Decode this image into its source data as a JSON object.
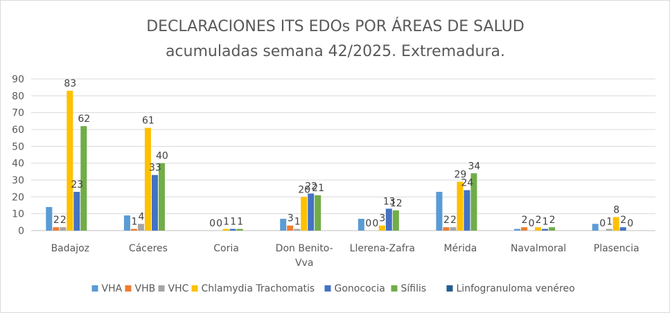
{
  "chart_data": {
    "type": "bar",
    "title": "DECLARACIONES ITS EDOs POR ÁREAS DE SALUD",
    "subtitle": "acumuladas semana 42/2025. Extremadura.",
    "categories": [
      "Badajoz",
      "Cáceres",
      "Coria",
      "Don Benito-Vva",
      "Llerena-Zafra",
      "Mérida",
      "Navalmoral",
      "Plasencia"
    ],
    "category_lines": [
      [
        "Badajoz"
      ],
      [
        "Cáceres"
      ],
      [
        "Coria"
      ],
      [
        "Don Benito-",
        "Vva"
      ],
      [
        "Llerena-Zafra"
      ],
      [
        "Mérida"
      ],
      [
        "Navalmoral"
      ],
      [
        "Plasencia"
      ]
    ],
    "ylim": [
      0,
      90
    ],
    "yticks": [
      0,
      10,
      20,
      30,
      40,
      50,
      60,
      70,
      80,
      90
    ],
    "grid": true,
    "legend_position": "bottom",
    "series": [
      {
        "name": "VHA",
        "color": "#5b9bd5",
        "values": [
          14,
          9,
          null,
          7,
          7,
          23,
          1,
          4
        ],
        "labels": [
          null,
          null,
          null,
          null,
          null,
          null,
          null,
          null
        ]
      },
      {
        "name": "VHB",
        "color": "#ed7d31",
        "values": [
          2,
          1,
          0,
          3,
          0,
          2,
          2,
          0
        ],
        "labels": [
          "2",
          "1",
          "0",
          "3",
          "0",
          "2",
          "2",
          "0"
        ]
      },
      {
        "name": "VHC",
        "color": "#a5a5a5",
        "values": [
          2,
          4,
          0,
          1,
          0,
          2,
          0,
          1
        ],
        "labels": [
          "2",
          "4",
          "0",
          "1",
          "0",
          "2",
          "0",
          "1"
        ]
      },
      {
        "name": "Chlamydia Trachomatis",
        "color": "#ffc000",
        "values": [
          83,
          61,
          1,
          20,
          3,
          29,
          2,
          8
        ],
        "labels": [
          "83",
          "61",
          "1",
          "20",
          "3",
          "29",
          "2",
          "8"
        ]
      },
      {
        "name": "Gonococia",
        "color": "#4472c4",
        "values": [
          23,
          33,
          1,
          22,
          13,
          24,
          1,
          2
        ],
        "labels": [
          "23",
          "33",
          "1",
          "22",
          "13",
          "24",
          "1",
          "2"
        ]
      },
      {
        "name": "Sífilis",
        "color": "#70ad47",
        "values": [
          62,
          40,
          1,
          21,
          12,
          34,
          2,
          0
        ],
        "labels": [
          "62",
          "40",
          "1",
          "21",
          "12",
          "34",
          "2",
          "0"
        ]
      },
      {
        "name": "Linfogranuloma venéreo",
        "color": "#255e91",
        "values": [
          null,
          null,
          null,
          null,
          null,
          null,
          null,
          null
        ],
        "labels": [
          null,
          null,
          null,
          null,
          null,
          null,
          null,
          null
        ]
      }
    ]
  }
}
